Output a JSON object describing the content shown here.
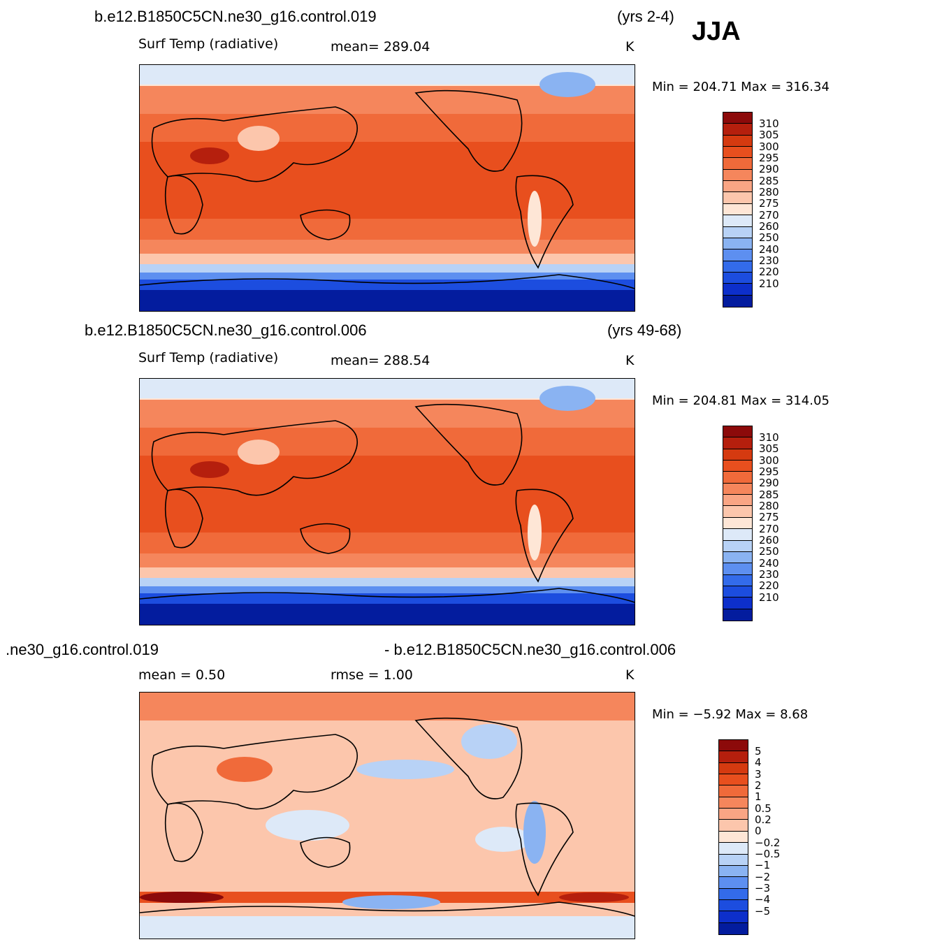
{
  "season": "JJA",
  "panels": [
    {
      "id": "top",
      "case_name": "b.e12.B1850C5CN.ne30_g16.control.019",
      "years": "(yrs 2-4)",
      "variable": "Surf Temp (radiative)",
      "stat1": "mean=  289.04",
      "stat2": "",
      "units": "K",
      "minmax": "Min = 204.71 Max = 316.34",
      "colorbar": {
        "labels": [
          "310",
          "305",
          "300",
          "295",
          "290",
          "285",
          "280",
          "275",
          "270",
          "260",
          "250",
          "240",
          "230",
          "220",
          "210"
        ],
        "colors": [
          "#8c0a0a",
          "#b51f0d",
          "#d53a10",
          "#e84f1e",
          "#f06a3a",
          "#f5865c",
          "#f9a584",
          "#fcc6ac",
          "#fee6d6",
          "#dde9f8",
          "#b8d2f6",
          "#8ab3f2",
          "#5d8ff0",
          "#336bea",
          "#1c4ddf",
          "#0d2fcb",
          "#031c9e"
        ]
      }
    },
    {
      "id": "middle",
      "case_name": "b.e12.B1850C5CN.ne30_g16.control.006",
      "years": "(yrs 49-68)",
      "variable": "Surf Temp (radiative)",
      "stat1": "mean=  288.54",
      "stat2": "",
      "units": "K",
      "minmax": "Min = 204.81 Max = 314.05",
      "colorbar": {
        "labels": [
          "310",
          "305",
          "300",
          "295",
          "290",
          "285",
          "280",
          "275",
          "270",
          "260",
          "250",
          "240",
          "230",
          "220",
          "210"
        ],
        "colors": [
          "#8c0a0a",
          "#b51f0d",
          "#d53a10",
          "#e84f1e",
          "#f06a3a",
          "#f5865c",
          "#f9a584",
          "#fcc6ac",
          "#fee6d6",
          "#dde9f8",
          "#b8d2f6",
          "#8ab3f2",
          "#5d8ff0",
          "#336bea",
          "#1c4ddf",
          "#0d2fcb",
          "#031c9e"
        ]
      }
    },
    {
      "id": "difference",
      "case_name": ".ne30_g16.control.019",
      "case_name_right": "- b.e12.B1850C5CN.ne30_g16.control.006",
      "years": "",
      "variable": "",
      "stat1": "mean =     0.50",
      "stat2": "rmse =     1.00",
      "units": "K",
      "minmax": "Min =  −5.92 Max =     8.68",
      "colorbar": {
        "labels": [
          "5",
          "4",
          "3",
          "2",
          "1",
          "0.5",
          "0.2",
          "0",
          "−0.2",
          "−0.5",
          "−1",
          "−2",
          "−3",
          "−4",
          "−5"
        ],
        "colors": [
          "#8c0a0a",
          "#b51f0d",
          "#d53a10",
          "#e84f1e",
          "#f06a3a",
          "#f5865c",
          "#f9a584",
          "#fcc6ac",
          "#fee6d6",
          "#dde9f8",
          "#b8d2f6",
          "#8ab3f2",
          "#5d8ff0",
          "#336bea",
          "#1c4ddf",
          "#0d2fcb",
          "#031c9e"
        ]
      }
    }
  ]
}
